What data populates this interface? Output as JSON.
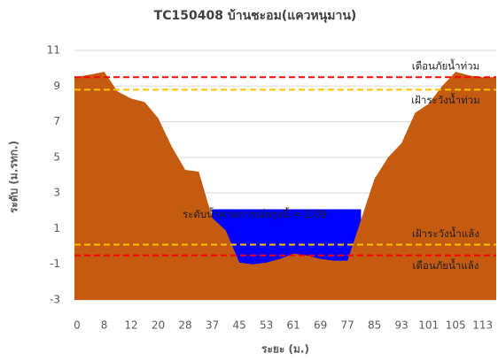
{
  "chart_data": {
    "type": "area",
    "title": "TC150408  บ้านชะอม(แควหนุมาน)",
    "x_label": "ระยะ (ม.)",
    "y_label": "ระดับ (ม.รทก.)",
    "categories": [
      "0",
      null,
      "8",
      null,
      "12",
      null,
      "20",
      null,
      "28",
      null,
      "37",
      null,
      "45",
      null,
      "53",
      null,
      "61",
      null,
      "69",
      null,
      "77",
      null,
      "85",
      null,
      "93",
      null,
      "101",
      null,
      "105",
      null,
      "113",
      null
    ],
    "series": [
      {
        "color": "#c55a11",
        "values": [
          9.5,
          9.65,
          9.8,
          8.7,
          8.3,
          8.1,
          7.2,
          5.6,
          4.3,
          4.2,
          1.6,
          0.9,
          -0.9,
          -1.0,
          -0.9,
          -0.7,
          -0.4,
          -0.5,
          -0.7,
          -0.8,
          -0.8,
          1.5,
          3.8,
          5.0,
          5.8,
          7.5,
          8.0,
          9.0,
          9.8,
          9.6,
          9.5,
          9.5
        ]
      },
      {
        "color": "#0000ff",
        "values": [
          null,
          null,
          null,
          null,
          null,
          null,
          null,
          null,
          null,
          null,
          2.09,
          2.09,
          2.09,
          2.09,
          2.09,
          2.09,
          2.09,
          2.09,
          2.09,
          2.09,
          2.09,
          2.09,
          null,
          null,
          null,
          null,
          null,
          null,
          null,
          null,
          null,
          null
        ]
      }
    ],
    "water_level": {
      "label": "ระดับน้ำคาดการณ์พรุ่งนี้ = 2.09",
      "value": 2.09
    },
    "thresholds": [
      {
        "label": "เตือนภัยน้ำท่วม",
        "value": 9.5,
        "color": "#ff0000"
      },
      {
        "label": "เฝ้าระวังน้ำท่วม",
        "value": 8.8,
        "color": "#ffc000"
      },
      {
        "label": "เฝ้าระวังน้ำแล้ง",
        "value": 0.1,
        "color": "#ffc000"
      },
      {
        "label": "เตือนภัยน้ำแล้ง",
        "value": -0.5,
        "color": "#ff0000"
      }
    ],
    "ylim": [
      -3,
      11
    ],
    "yticks": [
      -3,
      -1,
      1,
      3,
      5,
      7,
      9,
      11
    ],
    "grid": true
  }
}
